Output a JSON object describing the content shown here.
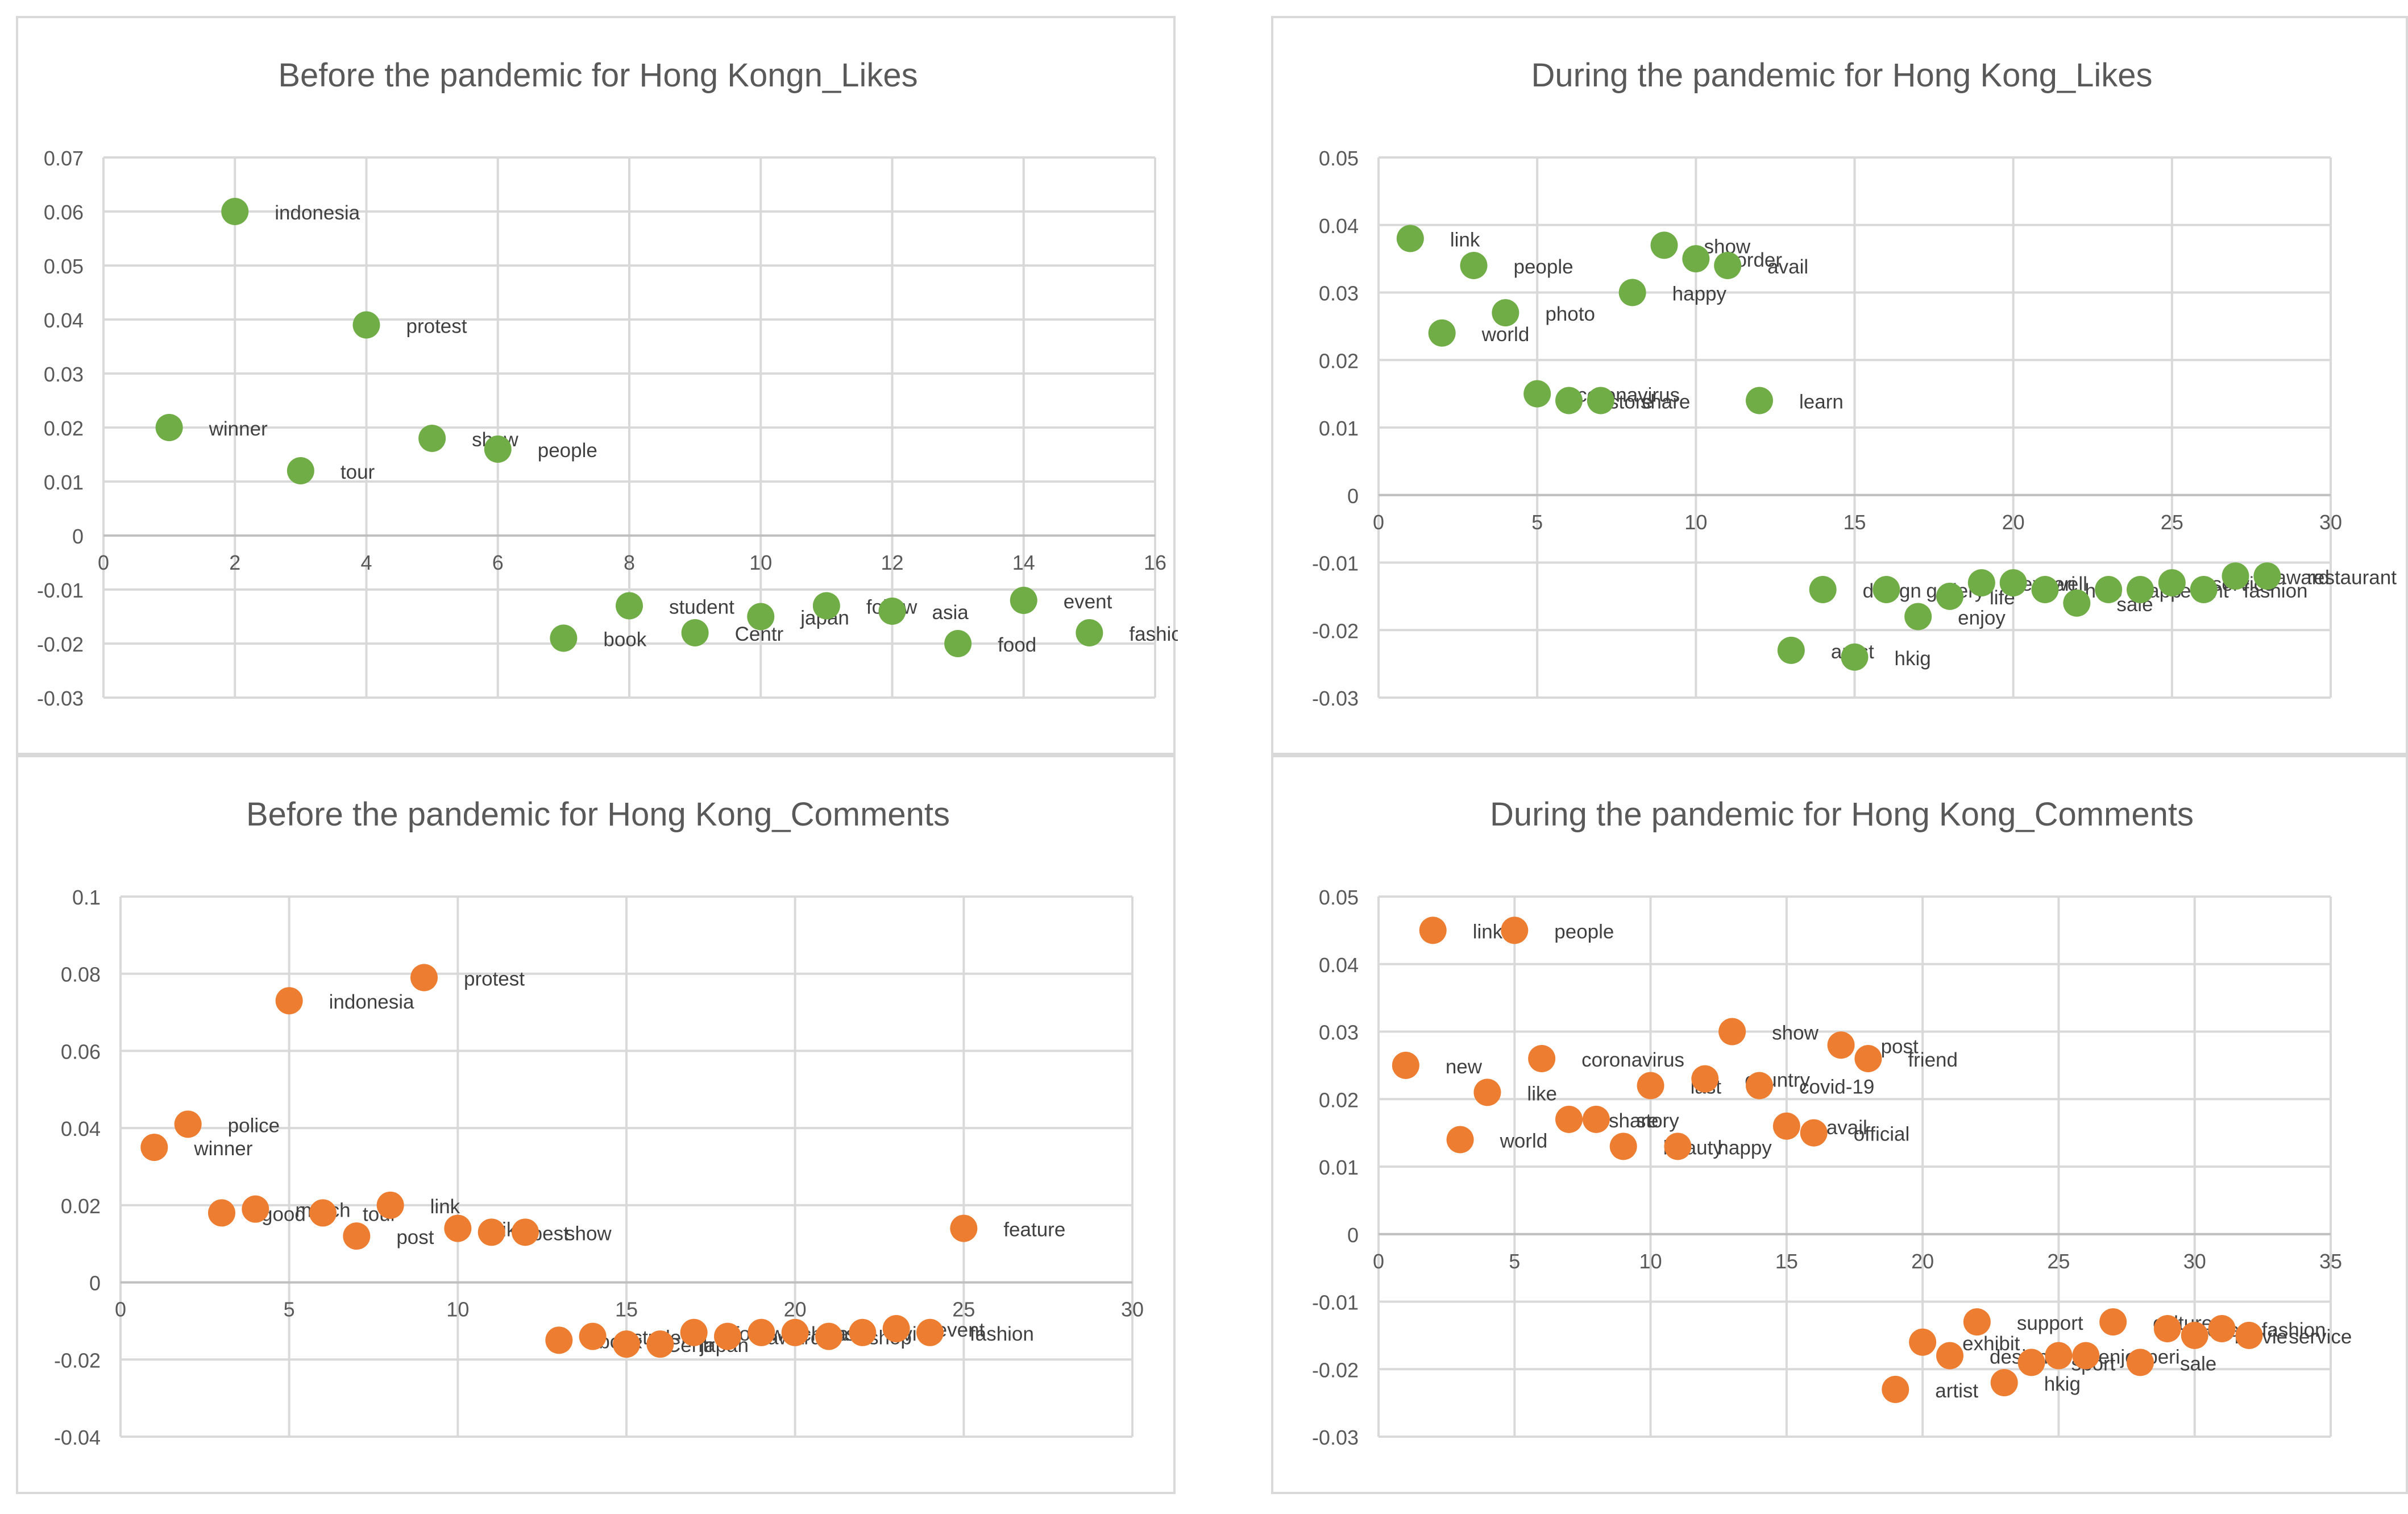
{
  "colors": {
    "green": "#70ad47",
    "orange": "#ed7d31",
    "grid": "#d9d9d9",
    "text": "#595959"
  },
  "chart_data": [
    {
      "type": "scatter",
      "title": "Before the pandemic for Hong Kongn_Likes",
      "series_color": "#70ad47",
      "xlim": [
        0,
        16
      ],
      "xstep": 2,
      "ylim": [
        -0.03,
        0.07
      ],
      "ystep": 0.01,
      "ydecimals": 2,
      "grid": true,
      "points": [
        {
          "label": "winner",
          "x": 1,
          "y": 0.02
        },
        {
          "label": "indonesia",
          "x": 2,
          "y": 0.06
        },
        {
          "label": "tour",
          "x": 3,
          "y": 0.012
        },
        {
          "label": "protest",
          "x": 4,
          "y": 0.039
        },
        {
          "label": "show",
          "x": 5,
          "y": 0.018
        },
        {
          "label": "people",
          "x": 6,
          "y": 0.016
        },
        {
          "label": "book",
          "x": 7,
          "y": -0.019
        },
        {
          "label": "student",
          "x": 8,
          "y": -0.013
        },
        {
          "label": "Centr",
          "x": 9,
          "y": -0.018
        },
        {
          "label": "japan",
          "x": 10,
          "y": -0.015
        },
        {
          "label": "follow",
          "x": 11,
          "y": -0.013
        },
        {
          "label": "asia",
          "x": 12,
          "y": -0.014
        },
        {
          "label": "food",
          "x": 13,
          "y": -0.02
        },
        {
          "label": "event",
          "x": 14,
          "y": -0.012
        },
        {
          "label": "fashion",
          "x": 15,
          "y": -0.018
        }
      ]
    },
    {
      "type": "scatter",
      "title": "During the pandemic for Hong Kong_Likes",
      "series_color": "#70ad47",
      "xlim": [
        0,
        30
      ],
      "xstep": 5,
      "ylim": [
        -0.03,
        0.05
      ],
      "ystep": 0.01,
      "ydecimals": 2,
      "grid": true,
      "points": [
        {
          "label": "link",
          "x": 1,
          "y": 0.038
        },
        {
          "label": "world",
          "x": 2,
          "y": 0.024
        },
        {
          "label": "people",
          "x": 3,
          "y": 0.034
        },
        {
          "label": "photo",
          "x": 4,
          "y": 0.027
        },
        {
          "label": "coronavirus",
          "x": 5,
          "y": 0.015
        },
        {
          "label": "store",
          "x": 6,
          "y": 0.014
        },
        {
          "label": "share",
          "x": 7,
          "y": 0.014
        },
        {
          "label": "happy",
          "x": 8,
          "y": 0.03
        },
        {
          "label": "show",
          "x": 9,
          "y": 0.037
        },
        {
          "label": "order",
          "x": 10,
          "y": 0.035
        },
        {
          "label": "avail",
          "x": 11,
          "y": 0.034
        },
        {
          "label": "learn",
          "x": 12,
          "y": 0.014
        },
        {
          "label": "artist",
          "x": 13,
          "y": -0.023
        },
        {
          "label": "design",
          "x": 14,
          "y": -0.014
        },
        {
          "label": "hkig",
          "x": 15,
          "y": -0.024
        },
        {
          "label": "gallery",
          "x": 16,
          "y": -0.014
        },
        {
          "label": "enjoy",
          "x": 17,
          "y": -0.018
        },
        {
          "label": "life",
          "x": 18,
          "y": -0.015
        },
        {
          "label": "experi",
          "x": 19,
          "y": -0.013
        },
        {
          "label": "well",
          "x": 20,
          "y": -0.013
        },
        {
          "label": "help",
          "x": 21,
          "y": -0.014
        },
        {
          "label": "sale",
          "x": 22,
          "y": -0.016
        },
        {
          "label": "app",
          "x": 23,
          "y": -0.014
        },
        {
          "label": "event",
          "x": 24,
          "y": -0.014
        },
        {
          "label": "service",
          "x": 25,
          "y": -0.013
        },
        {
          "label": "fashion",
          "x": 26,
          "y": -0.014
        },
        {
          "label": "award",
          "x": 27,
          "y": -0.012
        },
        {
          "label": "restaurant",
          "x": 28,
          "y": -0.012
        }
      ]
    },
    {
      "type": "scatter",
      "title": "Before the pandemic for Hong Kong_Comments",
      "series_color": "#ed7d31",
      "xlim": [
        0,
        30
      ],
      "xstep": 5,
      "ylim": [
        -0.04,
        0.1
      ],
      "ystep": 0.02,
      "ydecimals": 2,
      "grid": true,
      "points": [
        {
          "label": "winner",
          "x": 1,
          "y": 0.035
        },
        {
          "label": "police",
          "x": 2,
          "y": 0.041
        },
        {
          "label": "good",
          "x": 3,
          "y": 0.018
        },
        {
          "label": "march",
          "x": 4,
          "y": 0.019
        },
        {
          "label": "indonesia",
          "x": 5,
          "y": 0.073
        },
        {
          "label": "tour",
          "x": 6,
          "y": 0.018
        },
        {
          "label": "post",
          "x": 7,
          "y": 0.012
        },
        {
          "label": "link",
          "x": 8,
          "y": 0.02
        },
        {
          "label": "protest",
          "x": 9,
          "y": 0.079
        },
        {
          "label": "like",
          "x": 10,
          "y": 0.014
        },
        {
          "label": "best",
          "x": 11,
          "y": 0.013
        },
        {
          "label": "show",
          "x": 12,
          "y": 0.013
        },
        {
          "label": "book",
          "x": 13,
          "y": -0.015
        },
        {
          "label": "student",
          "x": 14,
          "y": -0.014
        },
        {
          "label": "Centr",
          "x": 15,
          "y": -0.016
        },
        {
          "label": "japan",
          "x": 16,
          "y": -0.016
        },
        {
          "label": "follow",
          "x": 17,
          "y": -0.013
        },
        {
          "label": "award",
          "x": 18,
          "y": -0.014
        },
        {
          "label": "china",
          "x": 19,
          "y": -0.013
        },
        {
          "label": "asia",
          "x": 20,
          "y": -0.013
        },
        {
          "label": "shop",
          "x": 21,
          "y": -0.014
        },
        {
          "label": "view",
          "x": 22,
          "y": -0.013
        },
        {
          "label": "event",
          "x": 23,
          "y": -0.012
        },
        {
          "label": "fashion",
          "x": 24,
          "y": -0.013
        },
        {
          "label": "feature",
          "x": 25,
          "y": 0.014
        }
      ]
    },
    {
      "type": "scatter",
      "title": "During the pandemic for Hong Kong_Comments",
      "series_color": "#ed7d31",
      "xlim": [
        0,
        35
      ],
      "xstep": 5,
      "ylim": [
        -0.03,
        0.05
      ],
      "ystep": 0.01,
      "ydecimals": 2,
      "grid": true,
      "points": [
        {
          "label": "new",
          "x": 1,
          "y": 0.025
        },
        {
          "label": "link",
          "x": 2,
          "y": 0.045
        },
        {
          "label": "world",
          "x": 3,
          "y": 0.014
        },
        {
          "label": "like",
          "x": 4,
          "y": 0.021
        },
        {
          "label": "people",
          "x": 5,
          "y": 0.045
        },
        {
          "label": "coronavirus",
          "x": 6,
          "y": 0.026
        },
        {
          "label": "share",
          "x": 7,
          "y": 0.017
        },
        {
          "label": "story",
          "x": 8,
          "y": 0.017
        },
        {
          "label": "beauty",
          "x": 9,
          "y": 0.013
        },
        {
          "label": "last",
          "x": 10,
          "y": 0.022
        },
        {
          "label": "happy",
          "x": 11,
          "y": 0.013
        },
        {
          "label": "country",
          "x": 12,
          "y": 0.023
        },
        {
          "label": "show",
          "x": 13,
          "y": 0.03
        },
        {
          "label": "covid-19",
          "x": 14,
          "y": 0.022
        },
        {
          "label": "avail",
          "x": 15,
          "y": 0.016
        },
        {
          "label": "official",
          "x": 16,
          "y": 0.015
        },
        {
          "label": "post",
          "x": 17,
          "y": 0.028
        },
        {
          "label": "friend",
          "x": 18,
          "y": 0.026
        },
        {
          "label": "artist",
          "x": 19,
          "y": -0.023
        },
        {
          "label": "exhibit",
          "x": 20,
          "y": -0.016
        },
        {
          "label": "design",
          "x": 21,
          "y": -0.018
        },
        {
          "label": "support",
          "x": 22,
          "y": -0.013
        },
        {
          "label": "hkig",
          "x": 23,
          "y": -0.022
        },
        {
          "label": "sport",
          "x": 24,
          "y": -0.019
        },
        {
          "label": "enjoy",
          "x": 25,
          "y": -0.018
        },
        {
          "label": "experi",
          "x": 26,
          "y": -0.018
        },
        {
          "label": "culture",
          "x": 27,
          "y": -0.013
        },
        {
          "label": "sale",
          "x": 28,
          "y": -0.019
        },
        {
          "label": "event",
          "x": 29,
          "y": -0.014
        },
        {
          "label": "movie",
          "x": 30,
          "y": -0.015
        },
        {
          "label": "fashion",
          "x": 31,
          "y": -0.014
        },
        {
          "label": "service",
          "x": 32,
          "y": -0.015
        }
      ]
    }
  ]
}
